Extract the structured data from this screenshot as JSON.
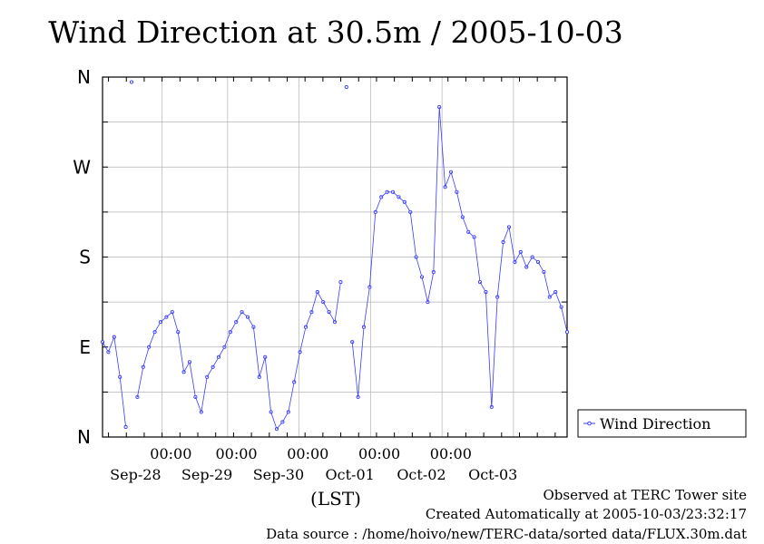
{
  "chart_data": {
    "type": "line",
    "title": "Wind Direction at 30.5m / 2005-10-03",
    "x_axis": {
      "label": "(LST)",
      "time_ticks": [
        "00:00",
        "00:00",
        "00:00",
        "00:00",
        "00:00"
      ],
      "day_labels": [
        "Sep-28",
        "Sep-29",
        "Sep-30",
        "Oct-01",
        "Oct-02",
        "Oct-03"
      ],
      "start": "2005-09-27 06:00",
      "end": "2005-10-03 23:30"
    },
    "y_axis": {
      "tick_labels": [
        "N",
        "E",
        "S",
        "W",
        "N"
      ],
      "ylim": [
        0,
        360
      ],
      "grid": true
    },
    "legend": {
      "position": "bottom-right",
      "entries": [
        "Wind Direction"
      ]
    },
    "series": [
      {
        "name": "Wind Direction",
        "color": "#3a3cff",
        "marker": "circle",
        "x_hours": [
          0,
          2,
          4,
          6,
          8,
          10,
          12,
          14,
          16,
          18,
          20,
          22,
          24,
          26,
          28,
          30,
          32,
          34,
          36,
          38,
          40,
          42,
          44,
          46,
          48,
          50,
          52,
          54,
          56,
          58,
          60,
          62,
          64,
          66,
          68,
          70,
          72,
          74,
          76,
          78,
          80,
          82,
          84,
          86,
          88,
          90,
          92,
          94,
          96,
          98,
          100,
          102,
          104,
          106,
          108,
          110,
          112,
          114,
          116,
          118,
          120,
          122,
          124,
          126,
          128,
          130,
          132,
          134,
          136,
          138,
          140,
          142,
          144,
          146,
          148,
          150,
          152,
          154,
          156,
          158,
          160
        ],
        "values": [
          95,
          85,
          100,
          60,
          10,
          355,
          40,
          70,
          90,
          105,
          115,
          120,
          125,
          105,
          65,
          75,
          40,
          25,
          60,
          70,
          80,
          90,
          105,
          115,
          125,
          120,
          110,
          60,
          80,
          25,
          8,
          15,
          25,
          55,
          85,
          110,
          125,
          145,
          135,
          125,
          115,
          155,
          350,
          95,
          40,
          110,
          150,
          225,
          240,
          245,
          245,
          240,
          235,
          225,
          180,
          160,
          135,
          165,
          330,
          250,
          265,
          245,
          220,
          205,
          200,
          155,
          145,
          30,
          140,
          195,
          210,
          175,
          185,
          170,
          180,
          175,
          165,
          140,
          145,
          130,
          105
        ]
      }
    ]
  },
  "footer": {
    "line1": "Observed at TERC Tower site",
    "line2": "Created Automatically at 2005-10-03/23:32:17",
    "line3": "Data source : /home/hoivo/new/TERC-data/sorted  data/FLUX.30m.dat"
  }
}
